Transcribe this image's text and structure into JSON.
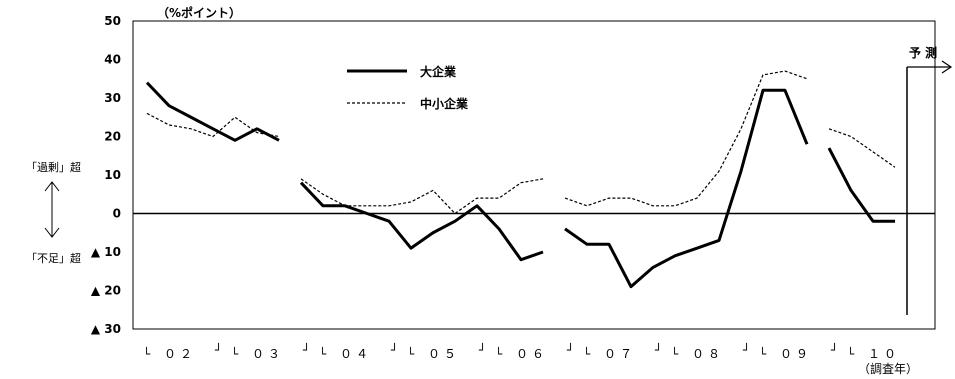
{
  "chart_data": {
    "type": "line",
    "unit_label": "（%ポイント）",
    "y_axis": {
      "range": [
        -30,
        50
      ],
      "ticks": [
        50,
        40,
        30,
        20,
        10,
        0,
        -10,
        -20,
        -30
      ],
      "tick_labels": [
        "50",
        "40",
        "30",
        "20",
        "10",
        "0",
        "▲ 10",
        "▲ 20",
        "▲ 30"
      ]
    },
    "side_labels": {
      "excess": "「過剰」超",
      "shortage": "「不足」超"
    },
    "x_axis": {
      "bracket_left": "└",
      "bracket_right": "┘",
      "year_labels": [
        "０２",
        "０３",
        "０４",
        "０５",
        "０６",
        "０７",
        "０８",
        "０９",
        "１０"
      ],
      "year_label_segments": [
        [
          0,
          3
        ],
        [
          4,
          7
        ],
        [
          8,
          11
        ],
        [
          12,
          15
        ],
        [
          16,
          19
        ],
        [
          20,
          23
        ],
        [
          24,
          27
        ],
        [
          28,
          31
        ],
        [
          32,
          35
        ]
      ],
      "title": "（調査年）"
    },
    "forecast_label": "予 測",
    "forecast_index": 35,
    "series": [
      {
        "name": "大企業",
        "style": "solid",
        "color": "#000000",
        "segments": [
          {
            "start": 0,
            "values": [
              34,
              28,
              25,
              22,
              19,
              22,
              19
            ]
          },
          {
            "start": 7,
            "values": [
              8,
              2,
              2,
              0,
              -2,
              -9,
              -5,
              -2,
              2,
              -4,
              -12,
              -10
            ]
          },
          {
            "start": 19,
            "values": [
              -4,
              -8,
              -8,
              -19,
              -14,
              -11,
              -9,
              -7,
              11,
              32,
              32,
              18
            ]
          },
          {
            "start": 31,
            "values": [
              17,
              6,
              -2,
              -2
            ]
          }
        ]
      },
      {
        "name": "中小企業",
        "style": "dashed",
        "color": "#000000",
        "segments": [
          {
            "start": 0,
            "values": [
              26,
              23,
              22,
              20,
              25,
              21,
              20
            ]
          },
          {
            "start": 7,
            "values": [
              9,
              5,
              2,
              2,
              2,
              3,
              6,
              0,
              4,
              4,
              8,
              9
            ]
          },
          {
            "start": 19,
            "values": [
              4,
              2,
              4,
              4,
              2,
              2,
              4,
              11,
              22,
              36,
              37,
              35
            ]
          },
          {
            "start": 31,
            "values": [
              22,
              20,
              16,
              12
            ]
          }
        ]
      }
    ],
    "grid": false,
    "legend": "top-center"
  }
}
